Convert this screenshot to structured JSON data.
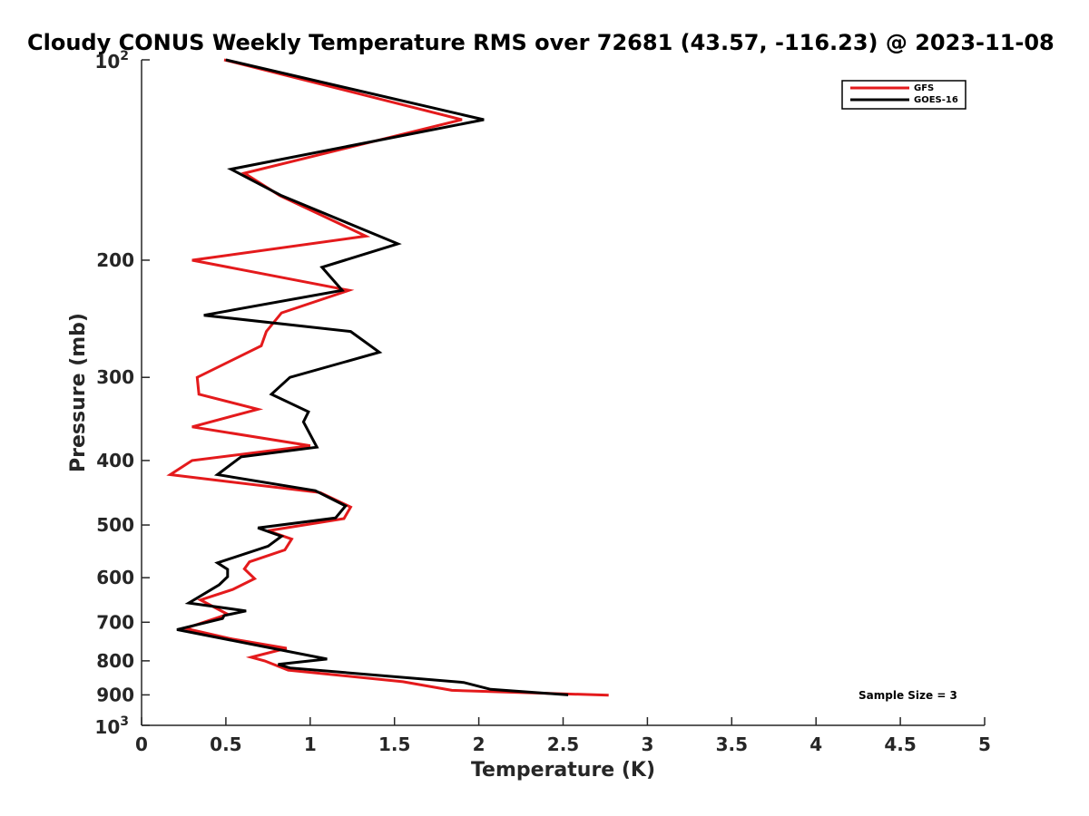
{
  "chart_data": {
    "type": "line",
    "title": "Cloudy CONUS Weekly Temperature RMS over 72681 (43.57, -116.23) @ 2023-11-08",
    "xlabel": "Temperature (K)",
    "ylabel": "Pressure (mb)",
    "xlim": [
      0,
      5
    ],
    "ylim": [
      100,
      1000
    ],
    "y_scale": "log",
    "y_reversed": true,
    "grid": false,
    "legend_position": "top-right",
    "x_ticks": [
      0,
      0.5,
      1,
      1.5,
      2,
      2.5,
      3,
      3.5,
      4,
      4.5,
      5
    ],
    "x_tick_labels": [
      "0",
      "0.5",
      "1",
      "1.5",
      "2",
      "2.5",
      "3",
      "3.5",
      "4",
      "4.5",
      "5"
    ],
    "y_ticks": [
      {
        "value": 100,
        "base": "10",
        "exp": "2"
      },
      {
        "value": 200,
        "label": "200"
      },
      {
        "value": 300,
        "label": "300"
      },
      {
        "value": 400,
        "label": "400"
      },
      {
        "value": 500,
        "label": "500"
      },
      {
        "value": 600,
        "label": "600"
      },
      {
        "value": 700,
        "label": "700"
      },
      {
        "value": 800,
        "label": "800"
      },
      {
        "value": 900,
        "label": "900"
      },
      {
        "value": 1000,
        "base": "10",
        "exp": "3"
      }
    ],
    "annotation": "Sample Size = 3",
    "series": [
      {
        "name": "GFS",
        "color": "#e41a1c",
        "points": [
          [
            0.49,
            100
          ],
          [
            1.9,
            123
          ],
          [
            0.61,
            148
          ],
          [
            0.82,
            160
          ],
          [
            1.33,
            184
          ],
          [
            0.3,
            200
          ],
          [
            1.23,
            222
          ],
          [
            0.83,
            240
          ],
          [
            0.74,
            256
          ],
          [
            0.71,
            269
          ],
          [
            0.33,
            300
          ],
          [
            0.34,
            318
          ],
          [
            0.69,
            335
          ],
          [
            0.3,
            356
          ],
          [
            1.0,
            380
          ],
          [
            0.3,
            400
          ],
          [
            0.17,
            420
          ],
          [
            1.06,
            447
          ],
          [
            1.24,
            470
          ],
          [
            1.2,
            489
          ],
          [
            0.75,
            510
          ],
          [
            0.89,
            525
          ],
          [
            0.85,
            545
          ],
          [
            0.64,
            568
          ],
          [
            0.61,
            582
          ],
          [
            0.67,
            602
          ],
          [
            0.54,
            625
          ],
          [
            0.35,
            648
          ],
          [
            0.51,
            681
          ],
          [
            0.26,
            715
          ],
          [
            0.54,
            742
          ],
          [
            0.86,
            766
          ],
          [
            0.65,
            790
          ],
          [
            0.73,
            800
          ],
          [
            0.87,
            826
          ],
          [
            1.55,
            860
          ],
          [
            1.84,
            886
          ],
          [
            2.77,
            901
          ]
        ]
      },
      {
        "name": "GOES-16",
        "color": "#000000",
        "points": [
          [
            0.5,
            100
          ],
          [
            2.03,
            123
          ],
          [
            0.53,
            146
          ],
          [
            0.83,
            160
          ],
          [
            1.52,
            189
          ],
          [
            1.07,
            205
          ],
          [
            1.19,
            222
          ],
          [
            0.37,
            242
          ],
          [
            1.24,
            256
          ],
          [
            1.41,
            275
          ],
          [
            0.88,
            300
          ],
          [
            0.77,
            318
          ],
          [
            0.99,
            338
          ],
          [
            0.96,
            350
          ],
          [
            1.04,
            382
          ],
          [
            0.59,
            395
          ],
          [
            0.45,
            420
          ],
          [
            1.03,
            444
          ],
          [
            1.21,
            468
          ],
          [
            1.15,
            488
          ],
          [
            0.69,
            505
          ],
          [
            0.83,
            520
          ],
          [
            0.75,
            538
          ],
          [
            0.45,
            570
          ],
          [
            0.51,
            583
          ],
          [
            0.51,
            598
          ],
          [
            0.46,
            615
          ],
          [
            0.28,
            655
          ],
          [
            0.62,
            673
          ],
          [
            0.49,
            684
          ],
          [
            0.48,
            691
          ],
          [
            0.21,
            718
          ],
          [
            1.1,
            795
          ],
          [
            0.81,
            810
          ],
          [
            0.88,
            820
          ],
          [
            1.91,
            862
          ],
          [
            2.07,
            883
          ],
          [
            2.53,
            900
          ]
        ]
      }
    ]
  }
}
